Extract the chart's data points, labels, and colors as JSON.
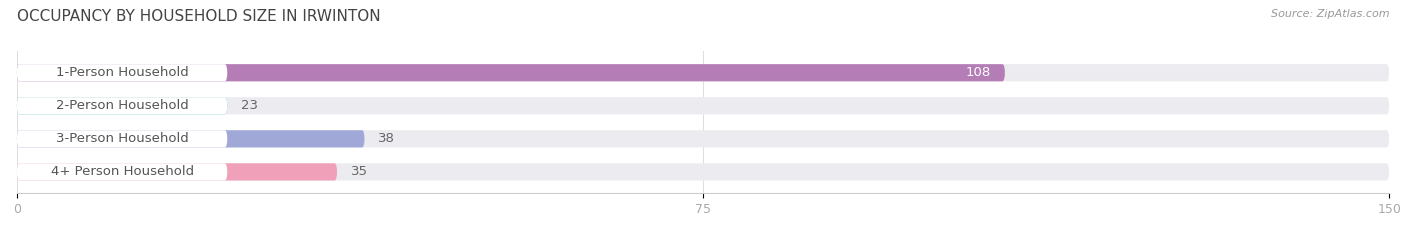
{
  "title": "OCCUPANCY BY HOUSEHOLD SIZE IN IRWINTON",
  "source": "Source: ZipAtlas.com",
  "categories": [
    "1-Person Household",
    "2-Person Household",
    "3-Person Household",
    "4+ Person Household"
  ],
  "values": [
    108,
    23,
    38,
    35
  ],
  "bar_colors": [
    "#b57db5",
    "#5abfbf",
    "#a0a8d8",
    "#f0a0b8"
  ],
  "xlim": [
    0,
    150
  ],
  "xticks": [
    0,
    75,
    150
  ],
  "bg_color": "#ffffff",
  "bar_bg_color": "#ebebf0",
  "label_fontsize": 9.5,
  "title_fontsize": 11,
  "value_fontsize": 9.5,
  "bar_height": 0.52,
  "label_text_color": "#555555",
  "title_color": "#444444",
  "source_color": "#999999",
  "pill_bg": "#ffffff",
  "value_color_inside": "#ffffff",
  "value_color_outside": "#666666"
}
